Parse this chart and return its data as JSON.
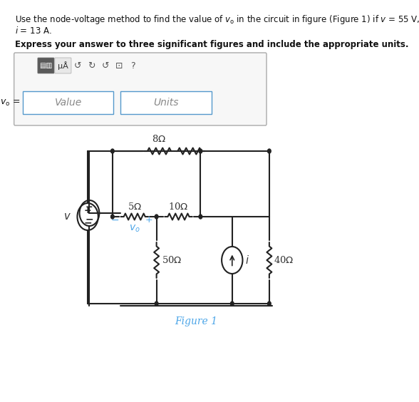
{
  "title_text": "Use the node-voltage method to find the value of $v_o$ in the circuit in figure (Figure 1) if $v$ = 55 V,\n$i$ = 13 A.",
  "instruction": "Express your answer to three significant figures and include the appropriate units.",
  "label_vo": "$v_o$ =",
  "placeholder_value": "Value",
  "placeholder_units": "Units",
  "figure_label": "Figure 1",
  "figure_label_color": "#4da6e8",
  "bg_color": "#ffffff",
  "box_bg": "#f0f0f0",
  "circuit_color": "#222222",
  "resistor_label_color": "#333333",
  "vo_label_color": "#4da6e8",
  "i_label_color": "#333333",
  "v_label_color": "#333333",
  "R8_label": "8Ω",
  "R5_label": "5Ω",
  "R10_label": "10Ω",
  "R50_label": "50Ω",
  "R40_label": "40Ω",
  "cs_label": "i",
  "vs_label": "v"
}
